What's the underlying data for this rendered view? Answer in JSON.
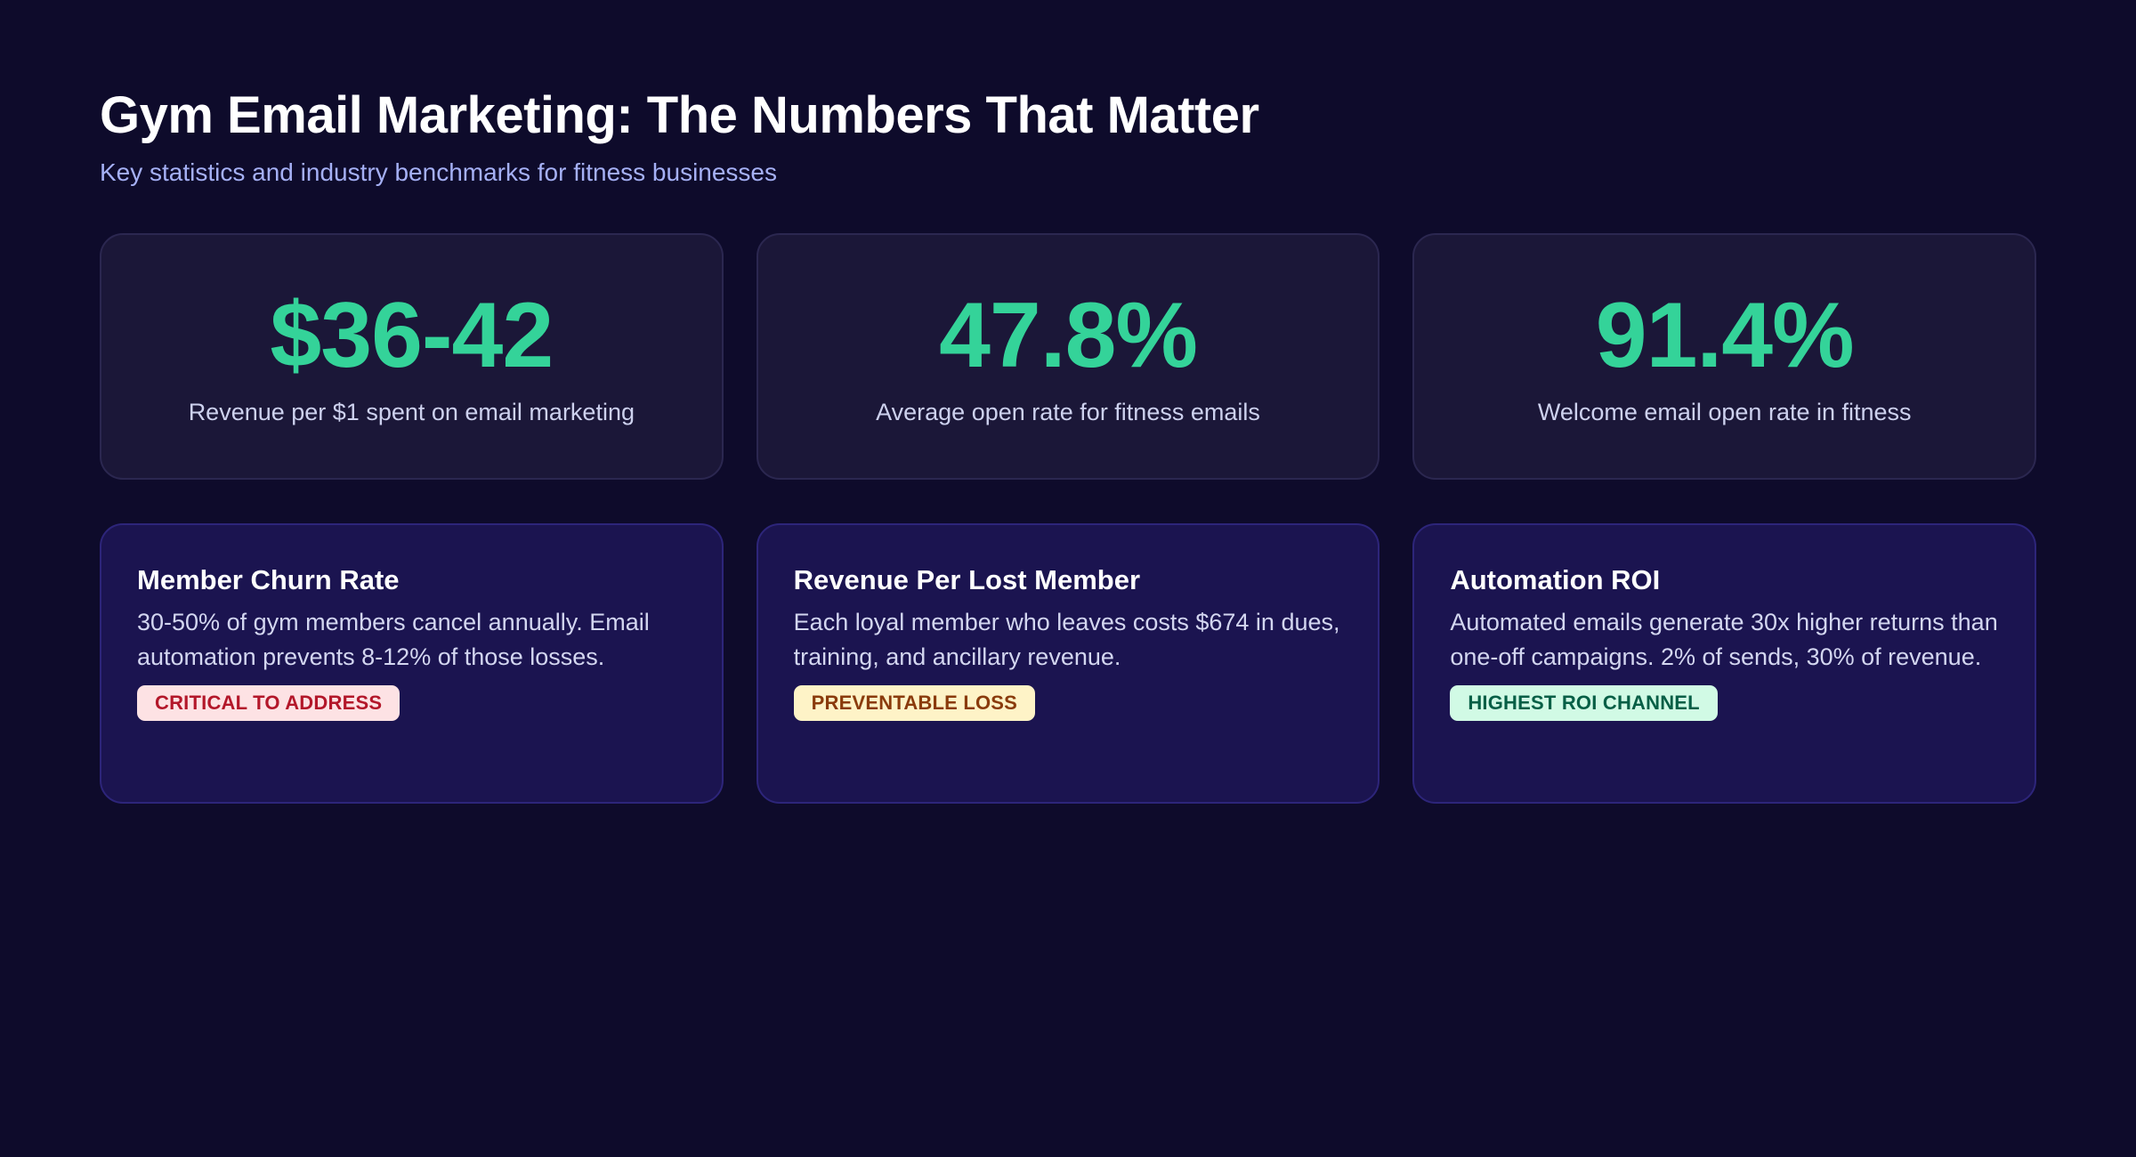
{
  "header": {
    "title": "Gym Email Marketing: The Numbers That Matter",
    "subtitle": "Key statistics and industry benchmarks for fitness businesses"
  },
  "colors": {
    "background": "#0e0b2b",
    "accent_green": "#34d399",
    "subtitle": "#a5b0f5"
  },
  "stats": [
    {
      "value": "$36-42",
      "label": "Revenue per $1 spent on email marketing"
    },
    {
      "value": "47.8%",
      "label": "Average open rate for fitness emails"
    },
    {
      "value": "91.4%",
      "label": "Welcome email open rate in fitness"
    }
  ],
  "cards": [
    {
      "title": "Member Churn Rate",
      "text": "30-50% of gym members cancel annually. Email automation prevents 8-12% of those losses.",
      "badge": "CRITICAL TO ADDRESS",
      "badge_bg": "#fde2e4",
      "badge_color": "#b3172a"
    },
    {
      "title": "Revenue Per Lost Member",
      "text": "Each loyal member who leaves costs $674 in dues, training, and ancillary revenue.",
      "badge": "PREVENTABLE LOSS",
      "badge_bg": "#fef3c7",
      "badge_color": "#8a3b0c"
    },
    {
      "title": "Automation ROI",
      "text": "Automated emails generate 30x higher returns than one-off campaigns. 2% of sends, 30% of revenue.",
      "badge": "HIGHEST ROI CHANNEL",
      "badge_bg": "#d1fae5",
      "badge_color": "#065f46"
    }
  ]
}
